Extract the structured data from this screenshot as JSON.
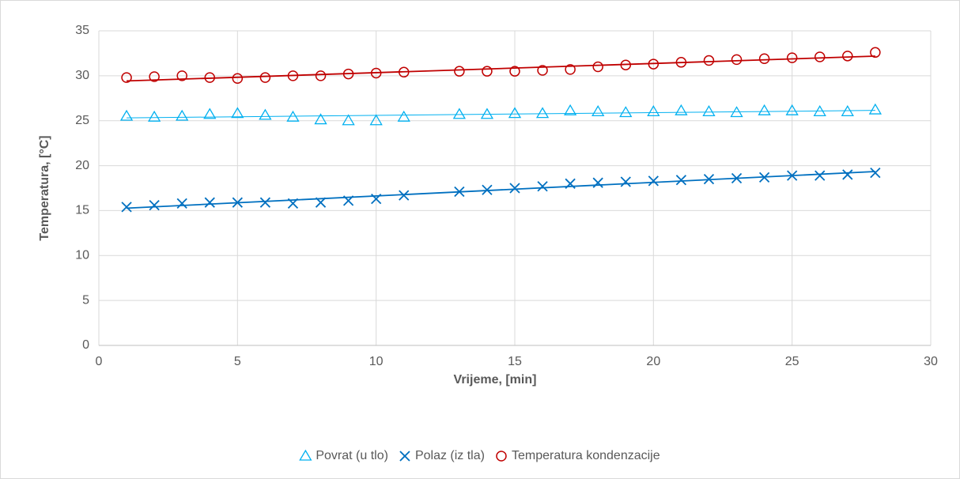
{
  "chart_data": {
    "type": "scatter",
    "xlabel": "Vrijeme, [min]",
    "ylabel": "Temperatura, [°C]",
    "x": [
      1,
      2,
      3,
      4,
      5,
      6,
      7,
      8,
      9,
      10,
      11,
      13,
      14,
      15,
      16,
      17,
      18,
      19,
      20,
      21,
      22,
      23,
      24,
      25,
      26,
      27,
      28
    ],
    "series": [
      {
        "name": "Povrat (u tlo)",
        "color": "#00b0f0",
        "marker": "triangle",
        "values": [
          25.5,
          25.4,
          25.5,
          25.7,
          25.8,
          25.6,
          25.4,
          25.1,
          25.0,
          25.0,
          25.4,
          25.7,
          25.7,
          25.8,
          25.8,
          26.1,
          26.0,
          25.9,
          26.0,
          26.1,
          26.0,
          25.9,
          26.1,
          26.1,
          26.0,
          26.0,
          26.2
        ]
      },
      {
        "name": "Polaz (iz tla)",
        "color": "#0070c0",
        "marker": "x",
        "values": [
          15.4,
          15.6,
          15.8,
          15.9,
          15.9,
          15.9,
          15.8,
          15.9,
          16.1,
          16.3,
          16.7,
          17.1,
          17.3,
          17.5,
          17.7,
          18.0,
          18.1,
          18.2,
          18.3,
          18.4,
          18.5,
          18.6,
          18.7,
          18.9,
          18.9,
          19.0,
          19.2
        ]
      },
      {
        "name": "Temperatura kondenzacije",
        "color": "#c00000",
        "marker": "circle",
        "values": [
          29.8,
          29.9,
          30.0,
          29.8,
          29.7,
          29.8,
          30.0,
          30.0,
          30.2,
          30.3,
          30.4,
          30.5,
          30.5,
          30.5,
          30.6,
          30.7,
          31.0,
          31.2,
          31.3,
          31.5,
          31.7,
          31.8,
          31.9,
          32.0,
          32.1,
          32.2,
          32.6
        ]
      }
    ],
    "trendline": "linear",
    "xlim": [
      0,
      30
    ],
    "xticks": [
      0,
      5,
      10,
      15,
      20,
      25,
      30
    ],
    "ylim": [
      0,
      35
    ],
    "yticks": [
      0,
      5,
      10,
      15,
      20,
      25,
      30,
      35
    ],
    "grid": true,
    "legend": "bottom"
  }
}
